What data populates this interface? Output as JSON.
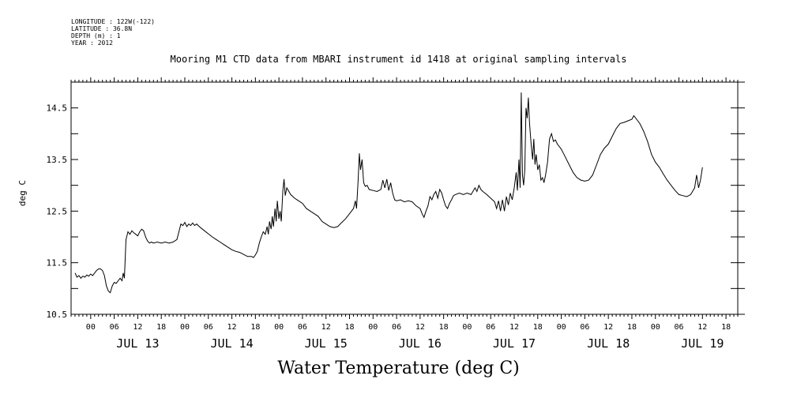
{
  "header": {
    "longitude": "LONGITUDE : 122W(-122)",
    "latitude": "LATITUDE : 36.8N",
    "depth": "DEPTH (m) : 1",
    "year": "YEAR : 2012"
  },
  "chart_data": {
    "type": "line",
    "title": "Mooring M1 CTD data from MBARI instrument id 1418 at original sampling intervals",
    "xlabel": "Water Temperature (deg C)",
    "ylabel": "deg C",
    "ylim": [
      10.5,
      15.0
    ],
    "yticks": [
      10.5,
      11.5,
      12.5,
      13.5,
      14.5
    ],
    "xlim_hours": [
      -5,
      165
    ],
    "hour_ticks": [
      "00",
      "06",
      "12",
      "18"
    ],
    "day_labels": [
      "JUL 13",
      "JUL 14",
      "JUL 15",
      "JUL 16",
      "JUL 17",
      "JUL 18",
      "JUL 19"
    ],
    "grid": false,
    "series": [
      {
        "name": "",
        "points": [
          [
            -4,
            11.3
          ],
          [
            -3.5,
            11.22
          ],
          [
            -3,
            11.25
          ],
          [
            -2.5,
            11.2
          ],
          [
            -2,
            11.24
          ],
          [
            -1.5,
            11.22
          ],
          [
            -1,
            11.26
          ],
          [
            -0.5,
            11.24
          ],
          [
            0,
            11.28
          ],
          [
            0.5,
            11.25
          ],
          [
            1,
            11.3
          ],
          [
            1.5,
            11.35
          ],
          [
            2,
            11.38
          ],
          [
            2.5,
            11.38
          ],
          [
            3,
            11.35
          ],
          [
            3.5,
            11.25
          ],
          [
            4,
            11.05
          ],
          [
            4.5,
            10.95
          ],
          [
            5,
            10.92
          ],
          [
            5.5,
            11.05
          ],
          [
            6,
            11.12
          ],
          [
            6.5,
            11.1
          ],
          [
            7,
            11.15
          ],
          [
            7.5,
            11.2
          ],
          [
            8,
            11.15
          ],
          [
            8.3,
            11.3
          ],
          [
            8.6,
            11.2
          ],
          [
            9,
            11.95
          ],
          [
            9.5,
            12.1
          ],
          [
            10,
            12.05
          ],
          [
            10.5,
            12.12
          ],
          [
            11,
            12.08
          ],
          [
            11.5,
            12.05
          ],
          [
            12,
            12.02
          ],
          [
            12.5,
            12.1
          ],
          [
            13,
            12.15
          ],
          [
            13.5,
            12.12
          ],
          [
            14,
            12.0
          ],
          [
            14.5,
            11.92
          ],
          [
            15,
            11.88
          ],
          [
            15.5,
            11.9
          ],
          [
            16,
            11.88
          ],
          [
            17,
            11.9
          ],
          [
            18,
            11.88
          ],
          [
            19,
            11.9
          ],
          [
            20,
            11.88
          ],
          [
            21,
            11.9
          ],
          [
            22,
            11.95
          ],
          [
            22.5,
            12.1
          ],
          [
            23,
            12.25
          ],
          [
            23.5,
            12.22
          ],
          [
            24,
            12.28
          ],
          [
            24.5,
            12.2
          ],
          [
            25,
            12.25
          ],
          [
            25.5,
            12.22
          ],
          [
            26,
            12.27
          ],
          [
            26.5,
            12.22
          ],
          [
            27,
            12.25
          ],
          [
            28,
            12.18
          ],
          [
            29,
            12.12
          ],
          [
            30,
            12.06
          ],
          [
            31,
            12.0
          ],
          [
            32,
            11.95
          ],
          [
            33,
            11.9
          ],
          [
            34,
            11.85
          ],
          [
            35,
            11.8
          ],
          [
            36,
            11.75
          ],
          [
            37,
            11.72
          ],
          [
            38,
            11.7
          ],
          [
            39,
            11.66
          ],
          [
            40,
            11.62
          ],
          [
            41,
            11.62
          ],
          [
            41.5,
            11.6
          ],
          [
            42,
            11.65
          ],
          [
            42.5,
            11.72
          ],
          [
            43,
            11.88
          ],
          [
            43.5,
            12.0
          ],
          [
            44,
            12.1
          ],
          [
            44.5,
            12.05
          ],
          [
            45,
            12.2
          ],
          [
            45.3,
            12.05
          ],
          [
            45.6,
            12.3
          ],
          [
            46,
            12.15
          ],
          [
            46.3,
            12.4
          ],
          [
            46.6,
            12.2
          ],
          [
            47,
            12.55
          ],
          [
            47.3,
            12.3
          ],
          [
            47.6,
            12.7
          ],
          [
            48,
            12.35
          ],
          [
            48.3,
            12.5
          ],
          [
            48.6,
            12.3
          ],
          [
            49,
            12.9
          ],
          [
            49.3,
            13.12
          ],
          [
            49.6,
            12.8
          ],
          [
            50,
            12.95
          ],
          [
            51,
            12.82
          ],
          [
            52,
            12.75
          ],
          [
            53,
            12.7
          ],
          [
            54,
            12.65
          ],
          [
            55,
            12.55
          ],
          [
            56,
            12.5
          ],
          [
            57,
            12.45
          ],
          [
            58,
            12.4
          ],
          [
            59,
            12.3
          ],
          [
            60,
            12.25
          ],
          [
            61,
            12.2
          ],
          [
            62,
            12.18
          ],
          [
            63,
            12.2
          ],
          [
            64,
            12.28
          ],
          [
            65,
            12.35
          ],
          [
            66,
            12.45
          ],
          [
            67,
            12.55
          ],
          [
            67.5,
            12.7
          ],
          [
            67.8,
            12.55
          ],
          [
            68.2,
            13.1
          ],
          [
            68.5,
            13.62
          ],
          [
            68.8,
            13.3
          ],
          [
            69.2,
            13.5
          ],
          [
            69.6,
            13.05
          ],
          [
            70,
            12.98
          ],
          [
            70.5,
            13.0
          ],
          [
            71,
            12.92
          ],
          [
            72,
            12.9
          ],
          [
            73,
            12.88
          ],
          [
            74,
            12.92
          ],
          [
            74.5,
            13.1
          ],
          [
            75,
            12.95
          ],
          [
            75.5,
            13.12
          ],
          [
            76,
            12.9
          ],
          [
            76.5,
            13.05
          ],
          [
            77,
            12.85
          ],
          [
            77.5,
            12.72
          ],
          [
            78,
            12.7
          ],
          [
            79,
            12.72
          ],
          [
            80,
            12.68
          ],
          [
            81,
            12.7
          ],
          [
            82,
            12.68
          ],
          [
            83,
            12.6
          ],
          [
            84,
            12.55
          ],
          [
            84.5,
            12.45
          ],
          [
            85,
            12.38
          ],
          [
            85.5,
            12.5
          ],
          [
            86,
            12.6
          ],
          [
            86.5,
            12.78
          ],
          [
            87,
            12.72
          ],
          [
            87.5,
            12.82
          ],
          [
            88,
            12.88
          ],
          [
            88.5,
            12.75
          ],
          [
            89,
            12.92
          ],
          [
            89.5,
            12.85
          ],
          [
            90,
            12.72
          ],
          [
            90.5,
            12.6
          ],
          [
            91,
            12.55
          ],
          [
            91.5,
            12.65
          ],
          [
            92,
            12.72
          ],
          [
            92.5,
            12.8
          ],
          [
            93,
            12.82
          ],
          [
            94,
            12.85
          ],
          [
            95,
            12.82
          ],
          [
            96,
            12.85
          ],
          [
            97,
            12.82
          ],
          [
            98,
            12.95
          ],
          [
            98.5,
            12.88
          ],
          [
            99,
            13.0
          ],
          [
            99.5,
            12.92
          ],
          [
            100,
            12.88
          ],
          [
            101,
            12.82
          ],
          [
            102,
            12.75
          ],
          [
            103,
            12.68
          ],
          [
            103.5,
            12.55
          ],
          [
            104,
            12.7
          ],
          [
            104.5,
            12.5
          ],
          [
            105,
            12.72
          ],
          [
            105.5,
            12.5
          ],
          [
            106,
            12.78
          ],
          [
            106.5,
            12.62
          ],
          [
            107,
            12.85
          ],
          [
            107.5,
            12.72
          ],
          [
            108,
            12.95
          ],
          [
            108.5,
            13.25
          ],
          [
            108.8,
            12.9
          ],
          [
            109.2,
            13.5
          ],
          [
            109.5,
            12.95
          ],
          [
            109.8,
            14.8
          ],
          [
            110.1,
            13.2
          ],
          [
            110.4,
            13.0
          ],
          [
            110.7,
            13.3
          ],
          [
            111,
            14.5
          ],
          [
            111.3,
            14.3
          ],
          [
            111.6,
            14.7
          ],
          [
            111.9,
            14.2
          ],
          [
            112.3,
            13.8
          ],
          [
            112.7,
            13.5
          ],
          [
            113,
            13.9
          ],
          [
            113.3,
            13.4
          ],
          [
            113.6,
            13.6
          ],
          [
            114,
            13.3
          ],
          [
            114.4,
            13.4
          ],
          [
            114.8,
            13.1
          ],
          [
            115.2,
            13.15
          ],
          [
            115.6,
            13.05
          ],
          [
            116,
            13.2
          ],
          [
            116.5,
            13.45
          ],
          [
            117,
            13.9
          ],
          [
            117.5,
            14.0
          ],
          [
            118,
            13.85
          ],
          [
            118.5,
            13.88
          ],
          [
            119,
            13.8
          ],
          [
            120,
            13.7
          ],
          [
            121,
            13.55
          ],
          [
            122,
            13.4
          ],
          [
            123,
            13.25
          ],
          [
            124,
            13.15
          ],
          [
            125,
            13.1
          ],
          [
            126,
            13.08
          ],
          [
            127,
            13.1
          ],
          [
            128,
            13.2
          ],
          [
            129,
            13.4
          ],
          [
            130,
            13.6
          ],
          [
            131,
            13.72
          ],
          [
            132,
            13.8
          ],
          [
            133,
            13.95
          ],
          [
            134,
            14.1
          ],
          [
            135,
            14.2
          ],
          [
            136,
            14.22
          ],
          [
            137,
            14.25
          ],
          [
            138,
            14.28
          ],
          [
            138.5,
            14.35
          ],
          [
            139,
            14.3
          ],
          [
            139.5,
            14.25
          ],
          [
            140,
            14.2
          ],
          [
            141,
            14.05
          ],
          [
            142,
            13.85
          ],
          [
            143,
            13.6
          ],
          [
            144,
            13.45
          ],
          [
            145,
            13.35
          ],
          [
            146,
            13.22
          ],
          [
            147,
            13.1
          ],
          [
            148,
            13.0
          ],
          [
            149,
            12.9
          ],
          [
            150,
            12.82
          ],
          [
            151,
            12.8
          ],
          [
            152,
            12.78
          ],
          [
            153,
            12.82
          ],
          [
            154,
            12.95
          ],
          [
            154.5,
            13.2
          ],
          [
            155,
            12.95
          ],
          [
            155.5,
            13.1
          ],
          [
            156,
            13.35
          ]
        ]
      }
    ]
  }
}
